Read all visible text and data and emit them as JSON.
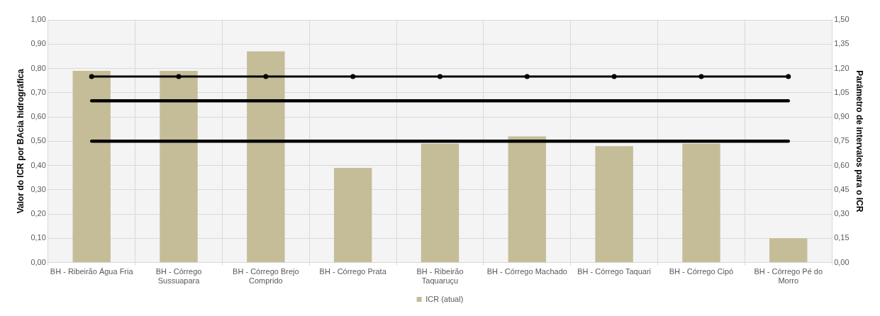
{
  "chart_data": {
    "type": "bar",
    "categories": [
      "BH - Ribeirão Água Fria",
      "BH - Córrego Sussuapara",
      "BH - Córrego Brejo Comprido",
      "BH - Córrego Prata",
      "BH - Ribeirão Taquaruçu",
      "BH - Córrego Machado",
      "BH - Córrego Taquari",
      "BH - Córrego Cipó",
      "BH - Córrego Pé do Morro"
    ],
    "series": [
      {
        "name": "ICR (atual)",
        "color": "#c4bd97",
        "values": [
          0.79,
          0.79,
          0.87,
          0.39,
          0.49,
          0.52,
          0.48,
          0.49,
          0.1
        ]
      },
      {
        "type": "line",
        "axis": "y2",
        "color": "#000000",
        "marker": "circle",
        "values": [
          1.15,
          1.15,
          1.15,
          1.15,
          1.15,
          1.15,
          1.15,
          1.15,
          1.15
        ]
      },
      {
        "type": "line",
        "axis": "y2",
        "color": "#000000",
        "marker": "none",
        "values": [
          1.0,
          1.0,
          1.0,
          1.0,
          1.0,
          1.0,
          1.0,
          1.0,
          1.0
        ]
      },
      {
        "type": "line",
        "axis": "y2",
        "color": "#000000",
        "marker": "none",
        "values": [
          0.75,
          0.75,
          0.75,
          0.75,
          0.75,
          0.75,
          0.75,
          0.75,
          0.75
        ]
      }
    ],
    "ylabel": "Valor do ICR por BAcia hidrográfica",
    "y2label": "Parâmetro de intervalos para o ICR",
    "ylim": [
      0,
      1
    ],
    "yticks": [
      {
        "value": 0,
        "label": "0,00"
      },
      {
        "value": 0.1,
        "label": "0,10"
      },
      {
        "value": 0.2,
        "label": "0,20"
      },
      {
        "value": 0.3,
        "label": "0,30"
      },
      {
        "value": 0.4,
        "label": "0,40"
      },
      {
        "value": 0.5,
        "label": "0,50"
      },
      {
        "value": 0.6,
        "label": "0,60"
      },
      {
        "value": 0.7,
        "label": "0,70"
      },
      {
        "value": 0.8,
        "label": "0,80"
      },
      {
        "value": 0.9,
        "label": "0,90"
      },
      {
        "value": 1,
        "label": "1,00"
      }
    ],
    "y2lim": [
      0,
      1.5
    ],
    "y2ticks": [
      {
        "value": 0,
        "label": "0,00"
      },
      {
        "value": 0.15,
        "label": "0,15"
      },
      {
        "value": 0.3,
        "label": "0,30"
      },
      {
        "value": 0.45,
        "label": "0,45"
      },
      {
        "value": 0.6,
        "label": "0,60"
      },
      {
        "value": 0.75,
        "label": "0,75"
      },
      {
        "value": 0.9,
        "label": "0,90"
      },
      {
        "value": 1.05,
        "label": "1,05"
      },
      {
        "value": 1.2,
        "label": "1,20"
      },
      {
        "value": 1.35,
        "label": "1,35"
      },
      {
        "value": 1.5,
        "label": "1,50"
      }
    ],
    "grid": true,
    "legend": "bottom"
  }
}
